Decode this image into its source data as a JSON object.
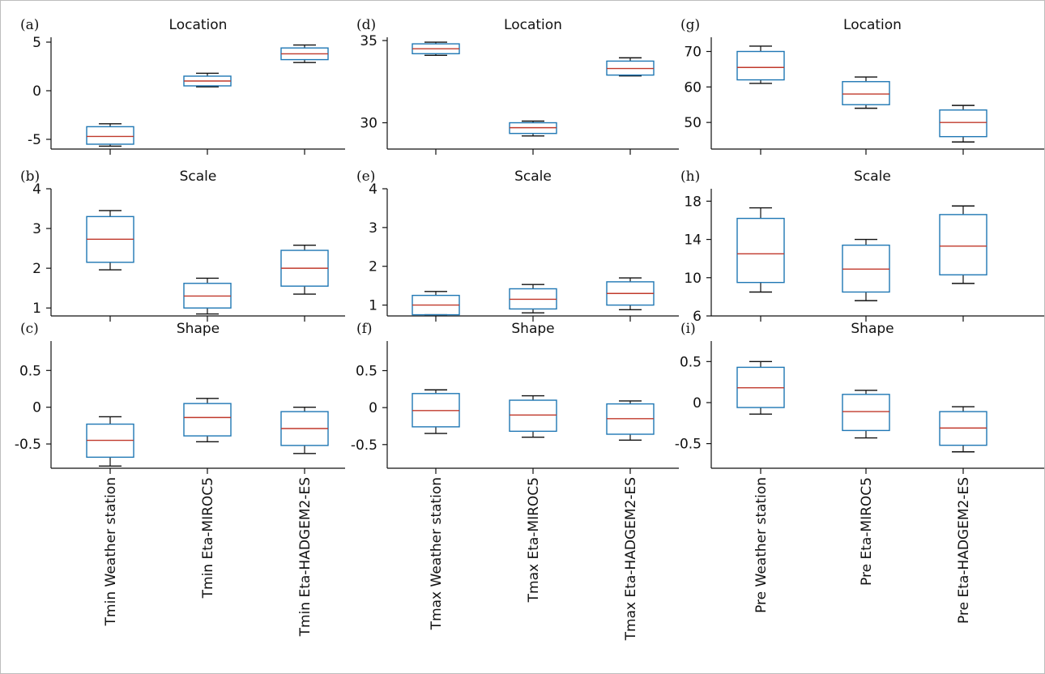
{
  "chart_data": [
    {
      "type": "box",
      "panel": "(a)",
      "title": "Location",
      "categories": [
        "Tmin Weather station",
        "Tmin Eta-MIROC5",
        "Tmin Eta-HADGEM2-ES"
      ],
      "ylim": [
        -6,
        5.5
      ],
      "yticks": [
        -5,
        0,
        5
      ],
      "ytick_labels": [
        "-5",
        "0",
        "5"
      ],
      "boxes": [
        {
          "whisker_low": -5.7,
          "q1": -5.5,
          "median": -4.7,
          "q3": -3.7,
          "whisker_high": -3.4
        },
        {
          "whisker_low": 0.4,
          "q1": 0.5,
          "median": 1.0,
          "q3": 1.5,
          "whisker_high": 1.8
        },
        {
          "whisker_low": 2.9,
          "q1": 3.2,
          "median": 3.8,
          "q3": 4.4,
          "whisker_high": 4.7
        }
      ]
    },
    {
      "type": "box",
      "panel": "(b)",
      "title": "Scale",
      "categories": [
        "Tmin Weather station",
        "Tmin Eta-MIROC5",
        "Tmin Eta-HADGEM2-ES"
      ],
      "ylim": [
        0.8,
        4
      ],
      "yticks": [
        1,
        2,
        3,
        4
      ],
      "ytick_labels": [
        "1",
        "2",
        "3",
        "4"
      ],
      "boxes": [
        {
          "whisker_low": 1.96,
          "q1": 2.15,
          "median": 2.73,
          "q3": 3.3,
          "whisker_high": 3.45
        },
        {
          "whisker_low": 0.85,
          "q1": 1.0,
          "median": 1.3,
          "q3": 1.62,
          "whisker_high": 1.75
        },
        {
          "whisker_low": 1.35,
          "q1": 1.55,
          "median": 2.0,
          "q3": 2.45,
          "whisker_high": 2.58
        }
      ]
    },
    {
      "type": "box",
      "panel": "(c)",
      "title": "Shape",
      "categories": [
        "Tmin Weather station",
        "Tmin Eta-MIROC5",
        "Tmin Eta-HADGEM2-ES"
      ],
      "ylim": [
        -0.83,
        0.9
      ],
      "yticks": [
        -0.5,
        0,
        0.5
      ],
      "ytick_labels": [
        "-0.5",
        "0",
        "0.5"
      ],
      "boxes": [
        {
          "whisker_low": -0.8,
          "q1": -0.68,
          "median": -0.45,
          "q3": -0.23,
          "whisker_high": -0.13
        },
        {
          "whisker_low": -0.47,
          "q1": -0.39,
          "median": -0.14,
          "q3": 0.05,
          "whisker_high": 0.12
        },
        {
          "whisker_low": -0.63,
          "q1": -0.52,
          "median": -0.29,
          "q3": -0.06,
          "whisker_high": 0.0
        }
      ]
    },
    {
      "type": "box",
      "panel": "(d)",
      "title": "Location",
      "categories": [
        "Tmax Weather station",
        "Tmax Eta-MIROC5",
        "Tmax Eta-HADGEM2-ES"
      ],
      "ylim": [
        28.4,
        35.2
      ],
      "yticks": [
        30,
        35
      ],
      "ytick_labels": [
        "30",
        "35"
      ],
      "boxes": [
        {
          "whisker_low": 34.1,
          "q1": 34.2,
          "median": 34.5,
          "q3": 34.8,
          "whisker_high": 34.9
        },
        {
          "whisker_low": 29.2,
          "q1": 29.35,
          "median": 29.7,
          "q3": 30.0,
          "whisker_high": 30.1
        },
        {
          "whisker_low": 32.85,
          "q1": 32.9,
          "median": 33.3,
          "q3": 33.75,
          "whisker_high": 33.95
        }
      ]
    },
    {
      "type": "box",
      "panel": "(e)",
      "title": "Scale",
      "categories": [
        "Tmax Weather station",
        "Tmax Eta-MIROC5",
        "Tmax Eta-HADGEM2-ES"
      ],
      "ylim": [
        0.72,
        4
      ],
      "yticks": [
        1,
        2,
        3,
        4
      ],
      "ytick_labels": [
        "1",
        "2",
        "3",
        "4"
      ],
      "boxes": [
        {
          "whisker_low": 0.75,
          "q1": 0.75,
          "median": 1.0,
          "q3": 1.25,
          "whisker_high": 1.35
        },
        {
          "whisker_low": 0.8,
          "q1": 0.9,
          "median": 1.15,
          "q3": 1.42,
          "whisker_high": 1.53
        },
        {
          "whisker_low": 0.88,
          "q1": 1.0,
          "median": 1.3,
          "q3": 1.6,
          "whisker_high": 1.7
        }
      ]
    },
    {
      "type": "box",
      "panel": "(f)",
      "title": "Shape",
      "categories": [
        "Tmax Weather station",
        "Tmax Eta-MIROC5",
        "Tmax Eta-HADGEM2-ES"
      ],
      "ylim": [
        -0.82,
        0.9
      ],
      "yticks": [
        -0.5,
        0,
        0.5
      ],
      "ytick_labels": [
        "-0.5",
        "0",
        "0.5"
      ],
      "boxes": [
        {
          "whisker_low": -0.35,
          "q1": -0.26,
          "median": -0.04,
          "q3": 0.19,
          "whisker_high": 0.24
        },
        {
          "whisker_low": -0.4,
          "q1": -0.32,
          "median": -0.1,
          "q3": 0.1,
          "whisker_high": 0.16
        },
        {
          "whisker_low": -0.44,
          "q1": -0.36,
          "median": -0.15,
          "q3": 0.05,
          "whisker_high": 0.09
        }
      ]
    },
    {
      "type": "box",
      "panel": "(g)",
      "title": "Location",
      "categories": [
        "Pre Weather station",
        "Pre Eta-MIROC5",
        "Pre Eta-HADGEM2-ES"
      ],
      "ylim": [
        42.5,
        74
      ],
      "yticks": [
        50,
        60,
        70
      ],
      "ytick_labels": [
        "50",
        "60",
        "70"
      ],
      "boxes": [
        {
          "whisker_low": 61.0,
          "q1": 62.0,
          "median": 65.5,
          "q3": 70.0,
          "whisker_high": 71.5
        },
        {
          "whisker_low": 54.0,
          "q1": 55.0,
          "median": 58.0,
          "q3": 61.5,
          "whisker_high": 62.8
        },
        {
          "whisker_low": 44.5,
          "q1": 46.0,
          "median": 50.0,
          "q3": 53.5,
          "whisker_high": 54.8
        }
      ]
    },
    {
      "type": "box",
      "panel": "(h)",
      "title": "Scale",
      "categories": [
        "Pre Weather station",
        "Pre Eta-MIROC5",
        "Pre Eta-HADGEM2-ES"
      ],
      "ylim": [
        6,
        19.3
      ],
      "yticks": [
        6,
        10,
        14,
        18
      ],
      "ytick_labels": [
        "6",
        "10",
        "14",
        "18"
      ],
      "boxes": [
        {
          "whisker_low": 8.5,
          "q1": 9.5,
          "median": 12.5,
          "q3": 16.2,
          "whisker_high": 17.3
        },
        {
          "whisker_low": 7.6,
          "q1": 8.5,
          "median": 10.9,
          "q3": 13.4,
          "whisker_high": 14.0
        },
        {
          "whisker_low": 9.4,
          "q1": 10.3,
          "median": 13.3,
          "q3": 16.6,
          "whisker_high": 17.5
        }
      ]
    },
    {
      "type": "box",
      "panel": "(i)",
      "title": "Shape",
      "categories": [
        "Pre Weather station",
        "Pre Eta-MIROC5",
        "Pre Eta-HADGEM2-ES"
      ],
      "ylim": [
        -0.8,
        0.75
      ],
      "yticks": [
        -0.5,
        0,
        0.5
      ],
      "ytick_labels": [
        "-0.5",
        "0",
        "0.5"
      ],
      "boxes": [
        {
          "whisker_low": -0.14,
          "q1": -0.06,
          "median": 0.18,
          "q3": 0.43,
          "whisker_high": 0.5
        },
        {
          "whisker_low": -0.43,
          "q1": -0.34,
          "median": -0.11,
          "q3": 0.1,
          "whisker_high": 0.15
        },
        {
          "whisker_low": -0.6,
          "q1": -0.52,
          "median": -0.31,
          "q3": -0.11,
          "whisker_high": -0.05
        }
      ]
    }
  ],
  "colors": {
    "box_edge": "#1f77b4",
    "median": "#c0392b",
    "whisker": "#111111",
    "axis": "#111111"
  }
}
